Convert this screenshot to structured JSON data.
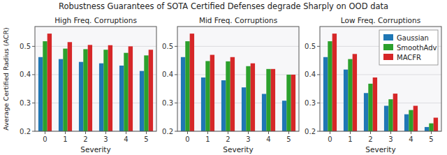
{
  "title": "Robustness Guarantees of SOTA Certified Defenses degrade Sharply on OOD data",
  "chart_data": [
    {
      "type": "bar",
      "title": "High Freq. Corruptions",
      "xlabel": "Severity",
      "ylabel": "Average Certified Radius (ACR)",
      "categories": [
        0,
        1,
        2,
        3,
        4,
        5
      ],
      "series": [
        {
          "name": "Gaussian",
          "color": "#1f77b4",
          "values": [
            0.462,
            0.455,
            0.445,
            0.44,
            0.432,
            0.413
          ]
        },
        {
          "name": "SmoothAdv",
          "color": "#2ca02c",
          "values": [
            0.518,
            0.492,
            0.49,
            0.488,
            0.477,
            0.468
          ]
        },
        {
          "name": "MACFR",
          "color": "#d62728",
          "values": [
            0.545,
            0.515,
            0.505,
            0.504,
            0.5,
            0.488
          ]
        }
      ],
      "ylim": [
        0.2,
        0.57
      ],
      "yticks": [
        0.2,
        0.3,
        0.4,
        0.5
      ],
      "grid": true
    },
    {
      "type": "bar",
      "title": "Mid Freq. Corruptions",
      "xlabel": "Severity",
      "categories": [
        0,
        1,
        2,
        3,
        4,
        5
      ],
      "series": [
        {
          "name": "Gaussian",
          "color": "#1f77b4",
          "values": [
            0.462,
            0.39,
            0.38,
            0.355,
            0.332,
            0.308
          ]
        },
        {
          "name": "SmoothAdv",
          "color": "#2ca02c",
          "values": [
            0.518,
            0.448,
            0.447,
            0.43,
            0.42,
            0.4
          ]
        },
        {
          "name": "MACFR",
          "color": "#d62728",
          "values": [
            0.545,
            0.47,
            0.462,
            0.44,
            0.42,
            0.4
          ]
        }
      ],
      "ylim": [
        0.2,
        0.57
      ],
      "yticks": [
        0.2,
        0.3,
        0.4,
        0.5
      ],
      "grid": true
    },
    {
      "type": "bar",
      "title": "Low Freq. Corruptions",
      "xlabel": "Severity",
      "categories": [
        0,
        1,
        2,
        3,
        4,
        5
      ],
      "series": [
        {
          "name": "Gaussian",
          "color": "#1f77b4",
          "values": [
            0.462,
            0.418,
            0.335,
            0.29,
            0.26,
            0.215
          ]
        },
        {
          "name": "SmoothAdv",
          "color": "#2ca02c",
          "values": [
            0.518,
            0.455,
            0.368,
            0.313,
            0.275,
            0.228
          ]
        },
        {
          "name": "MACFR",
          "color": "#d62728",
          "values": [
            0.545,
            0.473,
            0.39,
            0.333,
            0.29,
            0.248
          ]
        }
      ],
      "ylim": [
        0.2,
        0.57
      ],
      "yticks": [
        0.2,
        0.3,
        0.4,
        0.5
      ],
      "grid": true,
      "legend": "upper right"
    }
  ]
}
